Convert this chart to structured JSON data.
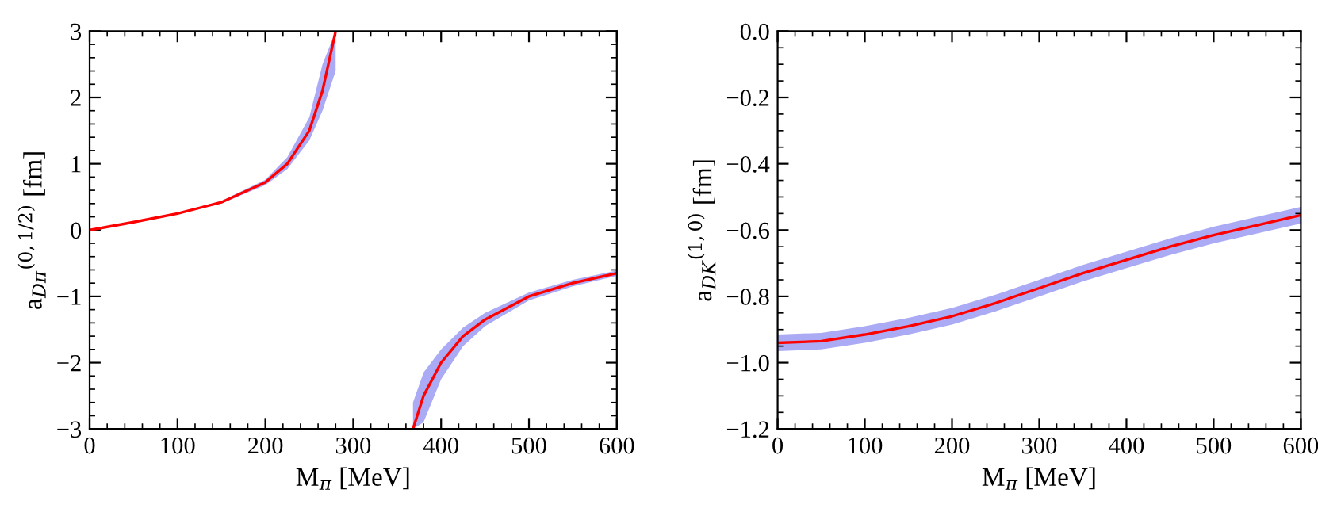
{
  "chart_data": [
    {
      "type": "line",
      "xlabel": "M$_{π}$ [MeV]",
      "ylabel": "a$_{Dπ}$$^{(0,1/2)}$ [fm]",
      "xlim": [
        0,
        600
      ],
      "xticks": [
        0,
        100,
        200,
        300,
        400,
        500,
        600
      ],
      "ylim": [
        -3,
        3
      ],
      "yticks": [
        {
          "value": -3,
          "label": "−3"
        },
        {
          "value": -2,
          "label": "−2"
        },
        {
          "value": -1,
          "label": "−1"
        },
        0,
        1,
        2,
        3
      ],
      "grid": false,
      "legend": false,
      "marker": "none",
      "line_style": "solid",
      "series": [
        {
          "color": "#ff0000",
          "x": [
            0,
            50,
            100,
            150,
            200,
            225,
            250,
            265,
            280,
            320,
            368,
            380,
            400,
            425,
            450,
            500,
            550,
            600
          ],
          "values": [
            0,
            0.12,
            0.25,
            0.42,
            0.72,
            1.0,
            1.5,
            2.1,
            3.0,
            null,
            -3.0,
            -2.5,
            -2.0,
            -1.6,
            -1.35,
            -1.0,
            -0.8,
            -0.65
          ],
          "lower": [
            0,
            0.11,
            0.24,
            0.4,
            0.68,
            0.92,
            1.35,
            1.8,
            2.4,
            null,
            -3.0,
            -2.9,
            -2.25,
            -1.75,
            -1.45,
            -1.06,
            -0.85,
            -0.69
          ],
          "upper": [
            0,
            0.13,
            0.26,
            0.44,
            0.76,
            1.1,
            1.7,
            2.5,
            3.0,
            null,
            -2.6,
            -2.15,
            -1.8,
            -1.47,
            -1.25,
            -0.94,
            -0.75,
            -0.61
          ]
        }
      ]
    },
    {
      "type": "line",
      "xlabel": "M$_{π}$ [MeV]",
      "ylabel": "a$_{DK}$$^{(1,0)}$ [fm]",
      "xlim": [
        0,
        600
      ],
      "xticks": [
        0,
        100,
        200,
        300,
        400,
        500,
        600
      ],
      "ylim": [
        -1.2,
        0
      ],
      "yticks": [
        {
          "value": -1.2,
          "label": "−1.2"
        },
        {
          "value": -1.0,
          "label": "−1.0"
        },
        {
          "value": -0.8,
          "label": "−0.8"
        },
        {
          "value": -0.6,
          "label": "−0.6"
        },
        {
          "value": -0.4,
          "label": "−0.4"
        },
        {
          "value": -0.2,
          "label": "−0.2"
        },
        {
          "value": 0,
          "label": "0.0"
        }
      ],
      "grid": false,
      "legend": false,
      "marker": "none",
      "line_style": "solid",
      "series": [
        {
          "color": "#ff0000",
          "x": [
            0,
            50,
            100,
            150,
            200,
            250,
            300,
            350,
            400,
            450,
            500,
            550,
            600
          ],
          "values": [
            -0.94,
            -0.935,
            -0.915,
            -0.89,
            -0.86,
            -0.82,
            -0.775,
            -0.73,
            -0.69,
            -0.65,
            -0.615,
            -0.585,
            -0.555
          ],
          "lower": [
            -0.965,
            -0.96,
            -0.94,
            -0.915,
            -0.885,
            -0.845,
            -0.8,
            -0.755,
            -0.715,
            -0.675,
            -0.64,
            -0.61,
            -0.58
          ],
          "upper": [
            -0.915,
            -0.91,
            -0.89,
            -0.865,
            -0.835,
            -0.795,
            -0.75,
            -0.705,
            -0.665,
            -0.625,
            -0.59,
            -0.56,
            -0.53
          ]
        }
      ]
    }
  ]
}
